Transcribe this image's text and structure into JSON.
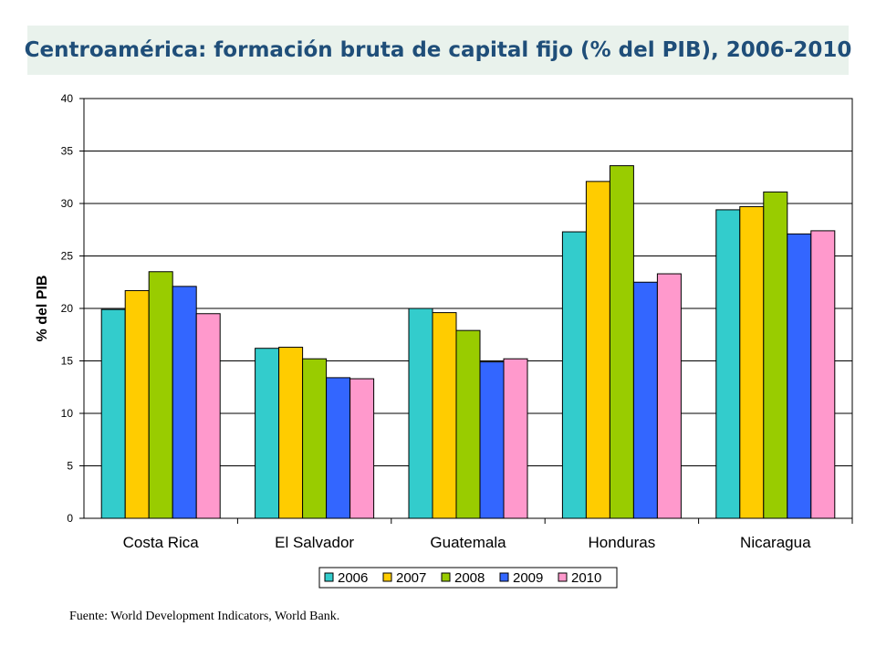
{
  "title": "Centroamérica: formación bruta de capital fijo (% del PIB), 2006-2010",
  "source": "Fuente: World Development Indicators, World Bank.",
  "chart_data": {
    "type": "bar",
    "ylabel": "% del PIB",
    "xlabel": "",
    "ylim": [
      0,
      40
    ],
    "yticks": [
      0,
      5,
      10,
      15,
      20,
      25,
      30,
      35,
      40
    ],
    "grid": true,
    "legend_position": "bottom",
    "categories": [
      "Costa Rica",
      "El Salvador",
      "Guatemala",
      "Honduras",
      "Nicaragua"
    ],
    "series": [
      {
        "name": "2006",
        "color": "#33cccc",
        "values": [
          19.9,
          16.2,
          20.0,
          27.3,
          29.4
        ]
      },
      {
        "name": "2007",
        "color": "#ffcc00",
        "values": [
          21.7,
          16.3,
          19.6,
          32.1,
          29.7
        ]
      },
      {
        "name": "2008",
        "color": "#99cc00",
        "values": [
          23.5,
          15.2,
          17.9,
          33.6,
          31.1
        ]
      },
      {
        "name": "2009",
        "color": "#3366ff",
        "values": [
          22.1,
          13.4,
          14.9,
          22.5,
          27.1
        ]
      },
      {
        "name": "2010",
        "color": "#ff99cc",
        "values": [
          19.5,
          13.3,
          15.2,
          23.3,
          27.4
        ]
      }
    ]
  }
}
